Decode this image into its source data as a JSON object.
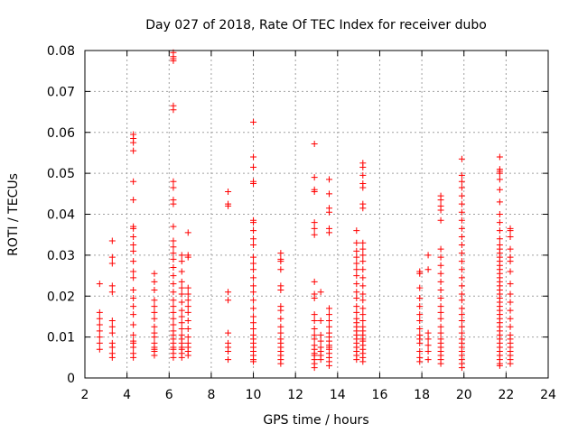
{
  "chart_data": {
    "type": "scatter",
    "title": "Day 027 of 2018, Rate Of TEC Index for receiver dubo",
    "xlabel": "GPS time / hours",
    "ylabel": "ROTI / TECUs",
    "xlim": [
      2,
      24
    ],
    "ylim": [
      0,
      0.08
    ],
    "grid": true,
    "marker": "+",
    "x_ticks": [
      "2",
      "4",
      "6",
      "8",
      "10",
      "12",
      "14",
      "16",
      "18",
      "20",
      "22",
      "24"
    ],
    "y_ticks": [
      "0",
      "0.01",
      "0.02",
      "0.03",
      "0.04",
      "0.05",
      "0.06",
      "0.07",
      "0.08"
    ],
    "colors": {
      "points": "#ff0000",
      "grid": "#a0a0a0",
      "axes": "#000000"
    },
    "clusters": [
      {
        "x": 2.7,
        "y": [
          0.007,
          0.0085,
          0.01,
          0.0115,
          0.013,
          0.0145,
          0.016,
          0.023
        ]
      },
      {
        "x": 3.3,
        "y": [
          0.005,
          0.006,
          0.0075,
          0.0085,
          0.011,
          0.0125,
          0.014,
          0.021,
          0.0225,
          0.028,
          0.0295,
          0.0335
        ]
      },
      {
        "x": 4.3,
        "y": [
          0.005,
          0.006,
          0.0075,
          0.0085,
          0.009,
          0.0105,
          0.013,
          0.0155,
          0.0175,
          0.0195,
          0.0215,
          0.0245,
          0.026,
          0.0285,
          0.031,
          0.0325,
          0.0345,
          0.0365,
          0.037,
          0.0435,
          0.048,
          0.0555,
          0.0575,
          0.0585,
          0.0595
        ]
      },
      {
        "x": 5.3,
        "y": [
          0.0055,
          0.0065,
          0.007,
          0.0075,
          0.0085,
          0.01,
          0.011,
          0.0125,
          0.0145,
          0.016,
          0.0175,
          0.019,
          0.0215,
          0.0235,
          0.0255
        ]
      },
      {
        "x": 6.2,
        "y": [
          0.005,
          0.006,
          0.007,
          0.0075,
          0.0085,
          0.0095,
          0.0105,
          0.0115,
          0.013,
          0.0145,
          0.016,
          0.0175,
          0.019,
          0.021,
          0.023,
          0.025,
          0.027,
          0.029,
          0.0305,
          0.032,
          0.0335,
          0.037,
          0.0425,
          0.0435,
          0.0465,
          0.048,
          0.0655,
          0.0665,
          0.0775,
          0.078,
          0.0785,
          0.0795
        ]
      },
      {
        "x": 6.6,
        "y": [
          0.005,
          0.006,
          0.007,
          0.0075,
          0.0085,
          0.0095,
          0.0105,
          0.012,
          0.0135,
          0.015,
          0.0165,
          0.0185,
          0.0205,
          0.022,
          0.0235,
          0.026,
          0.0285,
          0.03
        ]
      },
      {
        "x": 6.9,
        "y": [
          0.0055,
          0.0065,
          0.0075,
          0.0085,
          0.01,
          0.012,
          0.014,
          0.016,
          0.0175,
          0.019,
          0.0205,
          0.022,
          0.0295,
          0.03,
          0.0355
        ]
      },
      {
        "x": 8.8,
        "y": [
          0.0045,
          0.0065,
          0.0075,
          0.0085,
          0.011,
          0.019,
          0.021,
          0.042,
          0.0425,
          0.0455
        ]
      },
      {
        "x": 10.0,
        "y": [
          0.004,
          0.0045,
          0.0055,
          0.0065,
          0.0075,
          0.0085,
          0.0095,
          0.0105,
          0.012,
          0.0135,
          0.015,
          0.017,
          0.019,
          0.021,
          0.0225,
          0.0245,
          0.0265,
          0.028,
          0.0295,
          0.0325,
          0.034,
          0.036,
          0.038,
          0.0385,
          0.0475,
          0.048,
          0.0515,
          0.054,
          0.0625
        ]
      },
      {
        "x": 11.3,
        "y": [
          0.0035,
          0.0045,
          0.0055,
          0.0065,
          0.0075,
          0.0085,
          0.0095,
          0.011,
          0.0125,
          0.0145,
          0.0165,
          0.0175,
          0.0215,
          0.0225,
          0.0265,
          0.0285,
          0.029,
          0.0305
        ]
      },
      {
        "x": 12.9,
        "y": [
          0.0025,
          0.0035,
          0.0045,
          0.0055,
          0.006,
          0.007,
          0.008,
          0.0095,
          0.0105,
          0.012,
          0.014,
          0.0155,
          0.0195,
          0.0205,
          0.0235,
          0.035,
          0.0365,
          0.038,
          0.0455,
          0.046,
          0.049,
          0.0572
        ]
      },
      {
        "x": 13.2,
        "y": [
          0.0045,
          0.0055,
          0.0065,
          0.0075,
          0.009,
          0.0105,
          0.014,
          0.021
        ]
      },
      {
        "x": 13.6,
        "y": [
          0.003,
          0.004,
          0.005,
          0.006,
          0.007,
          0.0075,
          0.008,
          0.009,
          0.01,
          0.011,
          0.0125,
          0.014,
          0.0155,
          0.017,
          0.0355,
          0.0365,
          0.0405,
          0.0415,
          0.045,
          0.0485
        ]
      },
      {
        "x": 14.9,
        "y": [
          0.0045,
          0.0055,
          0.0065,
          0.0075,
          0.0085,
          0.0095,
          0.0105,
          0.0115,
          0.0125,
          0.0135,
          0.0145,
          0.016,
          0.0175,
          0.0195,
          0.021,
          0.023,
          0.025,
          0.0265,
          0.028,
          0.0295,
          0.031,
          0.033,
          0.036
        ]
      },
      {
        "x": 15.2,
        "y": [
          0.004,
          0.005,
          0.006,
          0.007,
          0.008,
          0.009,
          0.0095,
          0.0105,
          0.0115,
          0.0125,
          0.014,
          0.0155,
          0.017,
          0.019,
          0.0205,
          0.0225,
          0.0245,
          0.0265,
          0.0285,
          0.03,
          0.0315,
          0.033,
          0.0415,
          0.0425,
          0.0465,
          0.0475,
          0.0495,
          0.0515,
          0.0525
        ]
      },
      {
        "x": 17.9,
        "y": [
          0.004,
          0.005,
          0.0065,
          0.0085,
          0.0095,
          0.0105,
          0.012,
          0.014,
          0.0155,
          0.0175,
          0.0195,
          0.022,
          0.0255,
          0.026
        ]
      },
      {
        "x": 18.3,
        "y": [
          0.0045,
          0.0065,
          0.008,
          0.0095,
          0.011,
          0.0265,
          0.03
        ]
      },
      {
        "x": 18.9,
        "y": [
          0.0035,
          0.0045,
          0.0055,
          0.0065,
          0.0075,
          0.0085,
          0.0095,
          0.011,
          0.0125,
          0.0145,
          0.016,
          0.0175,
          0.0195,
          0.0215,
          0.0235,
          0.0255,
          0.0275,
          0.0295,
          0.0315,
          0.0385,
          0.041,
          0.042,
          0.0435,
          0.0445
        ]
      },
      {
        "x": 19.9,
        "y": [
          0.0025,
          0.0035,
          0.0045,
          0.0055,
          0.0065,
          0.0075,
          0.0085,
          0.0095,
          0.011,
          0.0125,
          0.014,
          0.0155,
          0.017,
          0.019,
          0.0205,
          0.0225,
          0.0245,
          0.0265,
          0.0285,
          0.0305,
          0.0325,
          0.0345,
          0.0365,
          0.0385,
          0.0405,
          0.0425,
          0.0445,
          0.0465,
          0.048,
          0.0495,
          0.0535
        ]
      },
      {
        "x": 21.7,
        "y": [
          0.003,
          0.0035,
          0.0045,
          0.0055,
          0.0065,
          0.0075,
          0.0085,
          0.0095,
          0.0105,
          0.0115,
          0.0125,
          0.0135,
          0.0145,
          0.0155,
          0.0165,
          0.0175,
          0.0185,
          0.0195,
          0.0205,
          0.0215,
          0.0225,
          0.0235,
          0.0245,
          0.0255,
          0.0265,
          0.0275,
          0.0285,
          0.0295,
          0.0305,
          0.0315,
          0.0325,
          0.034,
          0.036,
          0.038,
          0.04,
          0.043,
          0.046,
          0.0485,
          0.05,
          0.0505,
          0.051,
          0.054
        ]
      },
      {
        "x": 22.2,
        "y": [
          0.0035,
          0.0045,
          0.0055,
          0.0065,
          0.0075,
          0.0085,
          0.0095,
          0.0105,
          0.0125,
          0.0145,
          0.0165,
          0.0185,
          0.0205,
          0.023,
          0.026,
          0.0285,
          0.0295,
          0.0315,
          0.0345,
          0.036,
          0.0365
        ]
      }
    ]
  }
}
